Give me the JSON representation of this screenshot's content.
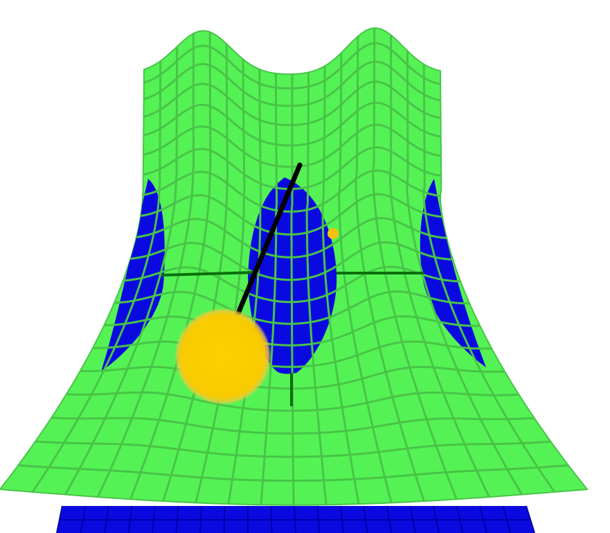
{
  "scene": {
    "background_color": "#ffffff",
    "surface_color": "#55f255",
    "grid_line_color": "#48c448",
    "water_color": "#0a0ae0",
    "water_grid_color": "#0000a6",
    "axis_color": "#0b6f0b",
    "pendulum_rod_color": "#000000",
    "pendulum_bob_color": "#f8cb00",
    "marker_dot_color": "#f4c20d"
  },
  "elements": {
    "surface": "wave-surface",
    "axes": "crosshair-axes",
    "pendulum": "pendulum-rod-and-bob",
    "marker": "small-yellow-marker-dot"
  }
}
